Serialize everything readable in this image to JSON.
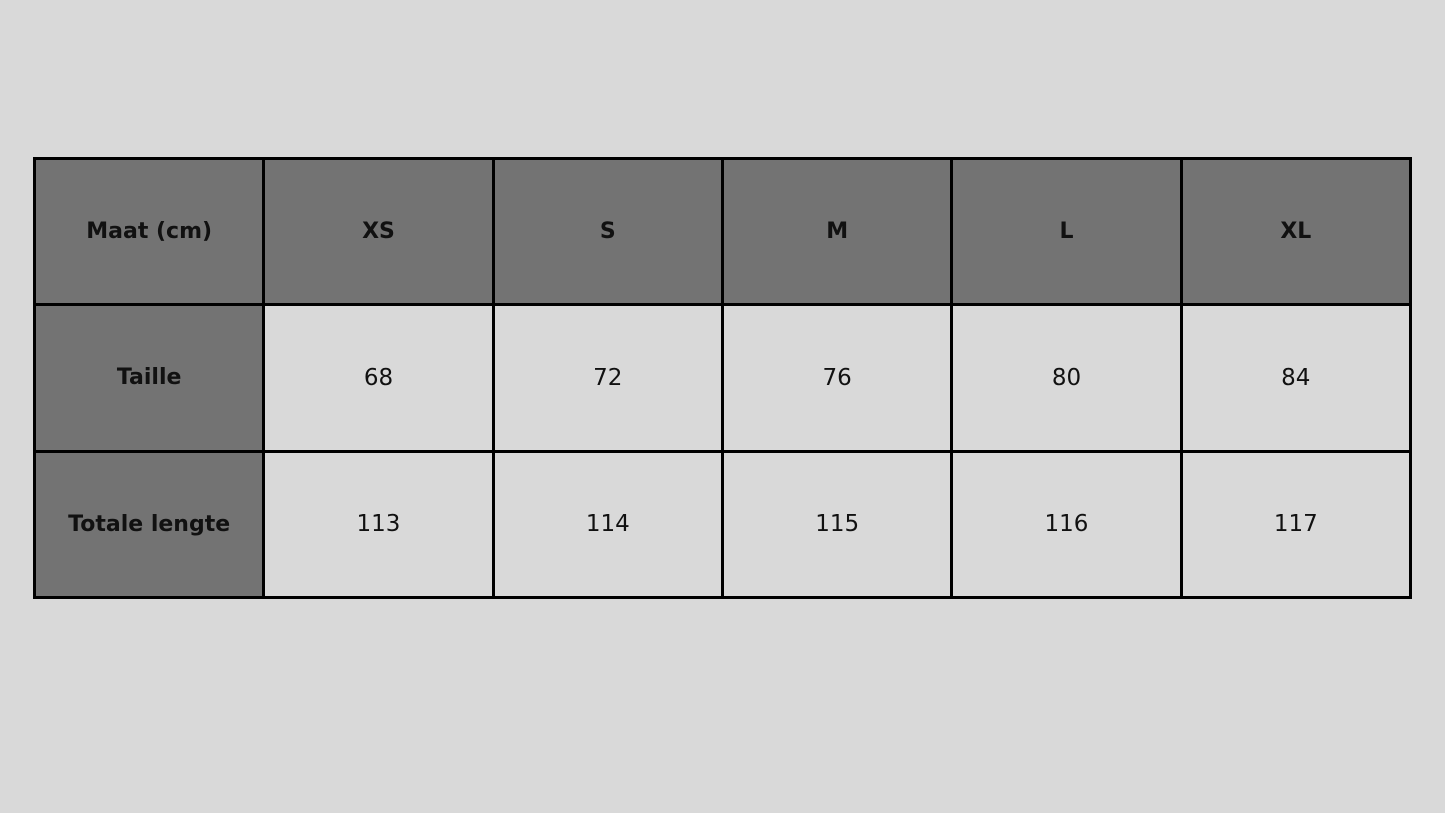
{
  "colors": {
    "background": "#d9d9d9",
    "header_fill": "#737373",
    "border": "#000000"
  },
  "table": {
    "header": [
      "Maat (cm)",
      "XS",
      "S",
      "M",
      "L",
      "XL"
    ],
    "rows": [
      {
        "label": "Taille",
        "values": [
          "68",
          "72",
          "76",
          "80",
          "84"
        ]
      },
      {
        "label": "Totale lengte",
        "values": [
          "113",
          "114",
          "115",
          "116",
          "117"
        ]
      }
    ]
  }
}
